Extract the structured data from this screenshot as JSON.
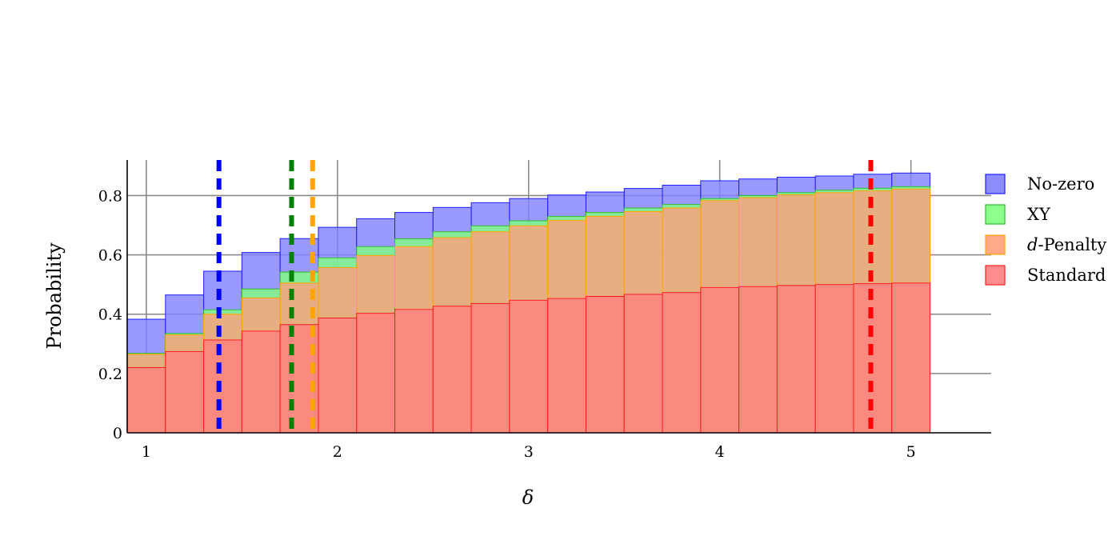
{
  "chart_data": {
    "type": "bar",
    "title": "",
    "xlabel": "δ",
    "ylabel": "Probability",
    "xlim": [
      0.9,
      5.42
    ],
    "ylim": [
      0,
      0.92
    ],
    "x_ticks": [
      1,
      2,
      3,
      4,
      5
    ],
    "y_ticks": [
      0,
      0.2,
      0.4,
      0.6,
      0.8
    ],
    "x_tick_labels": [
      "1",
      "2",
      "3",
      "4",
      "5"
    ],
    "y_tick_labels": [
      "0",
      "0.2",
      "0.4",
      "0.6",
      "0.8"
    ],
    "grid": true,
    "legend_position": "right",
    "bin_edges": [
      0.9,
      1.1,
      1.3,
      1.5,
      1.7,
      1.9,
      2.1,
      2.3,
      2.5,
      2.7,
      2.9,
      3.1,
      3.3,
      3.5,
      3.7,
      3.9,
      4.1,
      4.3,
      4.5,
      4.7,
      4.9,
      5.1
    ],
    "series": [
      {
        "name": "No-zero",
        "color": "#7f7fff",
        "stroke": "#1f1fff",
        "values": [
          0.383,
          0.465,
          0.545,
          0.608,
          0.655,
          0.693,
          0.722,
          0.743,
          0.76,
          0.776,
          0.79,
          0.802,
          0.812,
          0.824,
          0.835,
          0.85,
          0.856,
          0.862,
          0.866,
          0.872,
          0.876
        ]
      },
      {
        "name": "XY",
        "color": "#7fff7f",
        "stroke": "#2fbf2f",
        "values": [
          0.268,
          0.335,
          0.415,
          0.485,
          0.542,
          0.59,
          0.628,
          0.654,
          0.678,
          0.698,
          0.715,
          0.73,
          0.743,
          0.758,
          0.77,
          0.79,
          0.8,
          0.81,
          0.818,
          0.825,
          0.83
        ]
      },
      {
        "name": "d-Penalty",
        "name_italic": "d",
        "name_rest": "-Penalty",
        "color": "#ffa07a",
        "stroke": "#ffa500",
        "values": [
          0.265,
          0.33,
          0.4,
          0.455,
          0.505,
          0.557,
          0.598,
          0.628,
          0.658,
          0.678,
          0.698,
          0.716,
          0.73,
          0.746,
          0.758,
          0.783,
          0.793,
          0.803,
          0.81,
          0.816,
          0.822
        ]
      },
      {
        "name": "Standard",
        "color": "#ff7f7f",
        "stroke": "#ff2020",
        "values": [
          0.22,
          0.274,
          0.313,
          0.343,
          0.365,
          0.387,
          0.403,
          0.416,
          0.427,
          0.436,
          0.447,
          0.453,
          0.46,
          0.467,
          0.473,
          0.49,
          0.493,
          0.497,
          0.5,
          0.503,
          0.505
        ]
      }
    ],
    "reference_lines": [
      {
        "x": 1.38,
        "color": "#0000ff"
      },
      {
        "x": 1.76,
        "color": "#008000"
      },
      {
        "x": 1.87,
        "color": "#ffa500"
      },
      {
        "x": 4.79,
        "color": "#ff0000"
      }
    ]
  }
}
